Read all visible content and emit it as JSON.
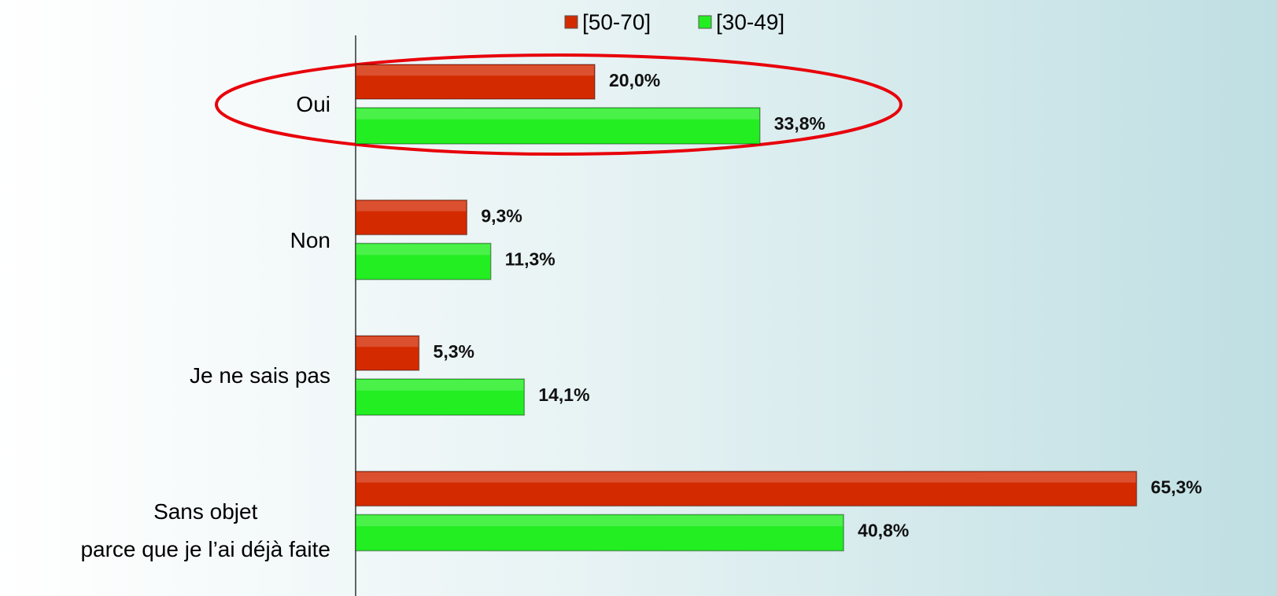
{
  "chart_data": {
    "type": "bar",
    "orientation": "horizontal",
    "categories": [
      "Oui",
      "Non",
      "Je ne sais pas",
      "Sans objet\nparce que je l’ai déjà faite"
    ],
    "series": [
      {
        "name": "[50-70]",
        "color": "#d42a00",
        "values": [
          20.0,
          9.3,
          5.3,
          65.3
        ],
        "value_labels": [
          "20,0%",
          "9,3%",
          "5,3%",
          "65,3%"
        ]
      },
      {
        "name": "[30-49]",
        "color": "#22ee22",
        "values": [
          33.8,
          11.3,
          14.1,
          40.8
        ],
        "value_labels": [
          "33,8%",
          "11,3%",
          "14,1%",
          "40,8%"
        ]
      }
    ],
    "xlim": [
      0,
      70
    ],
    "legend": "top"
  }
}
